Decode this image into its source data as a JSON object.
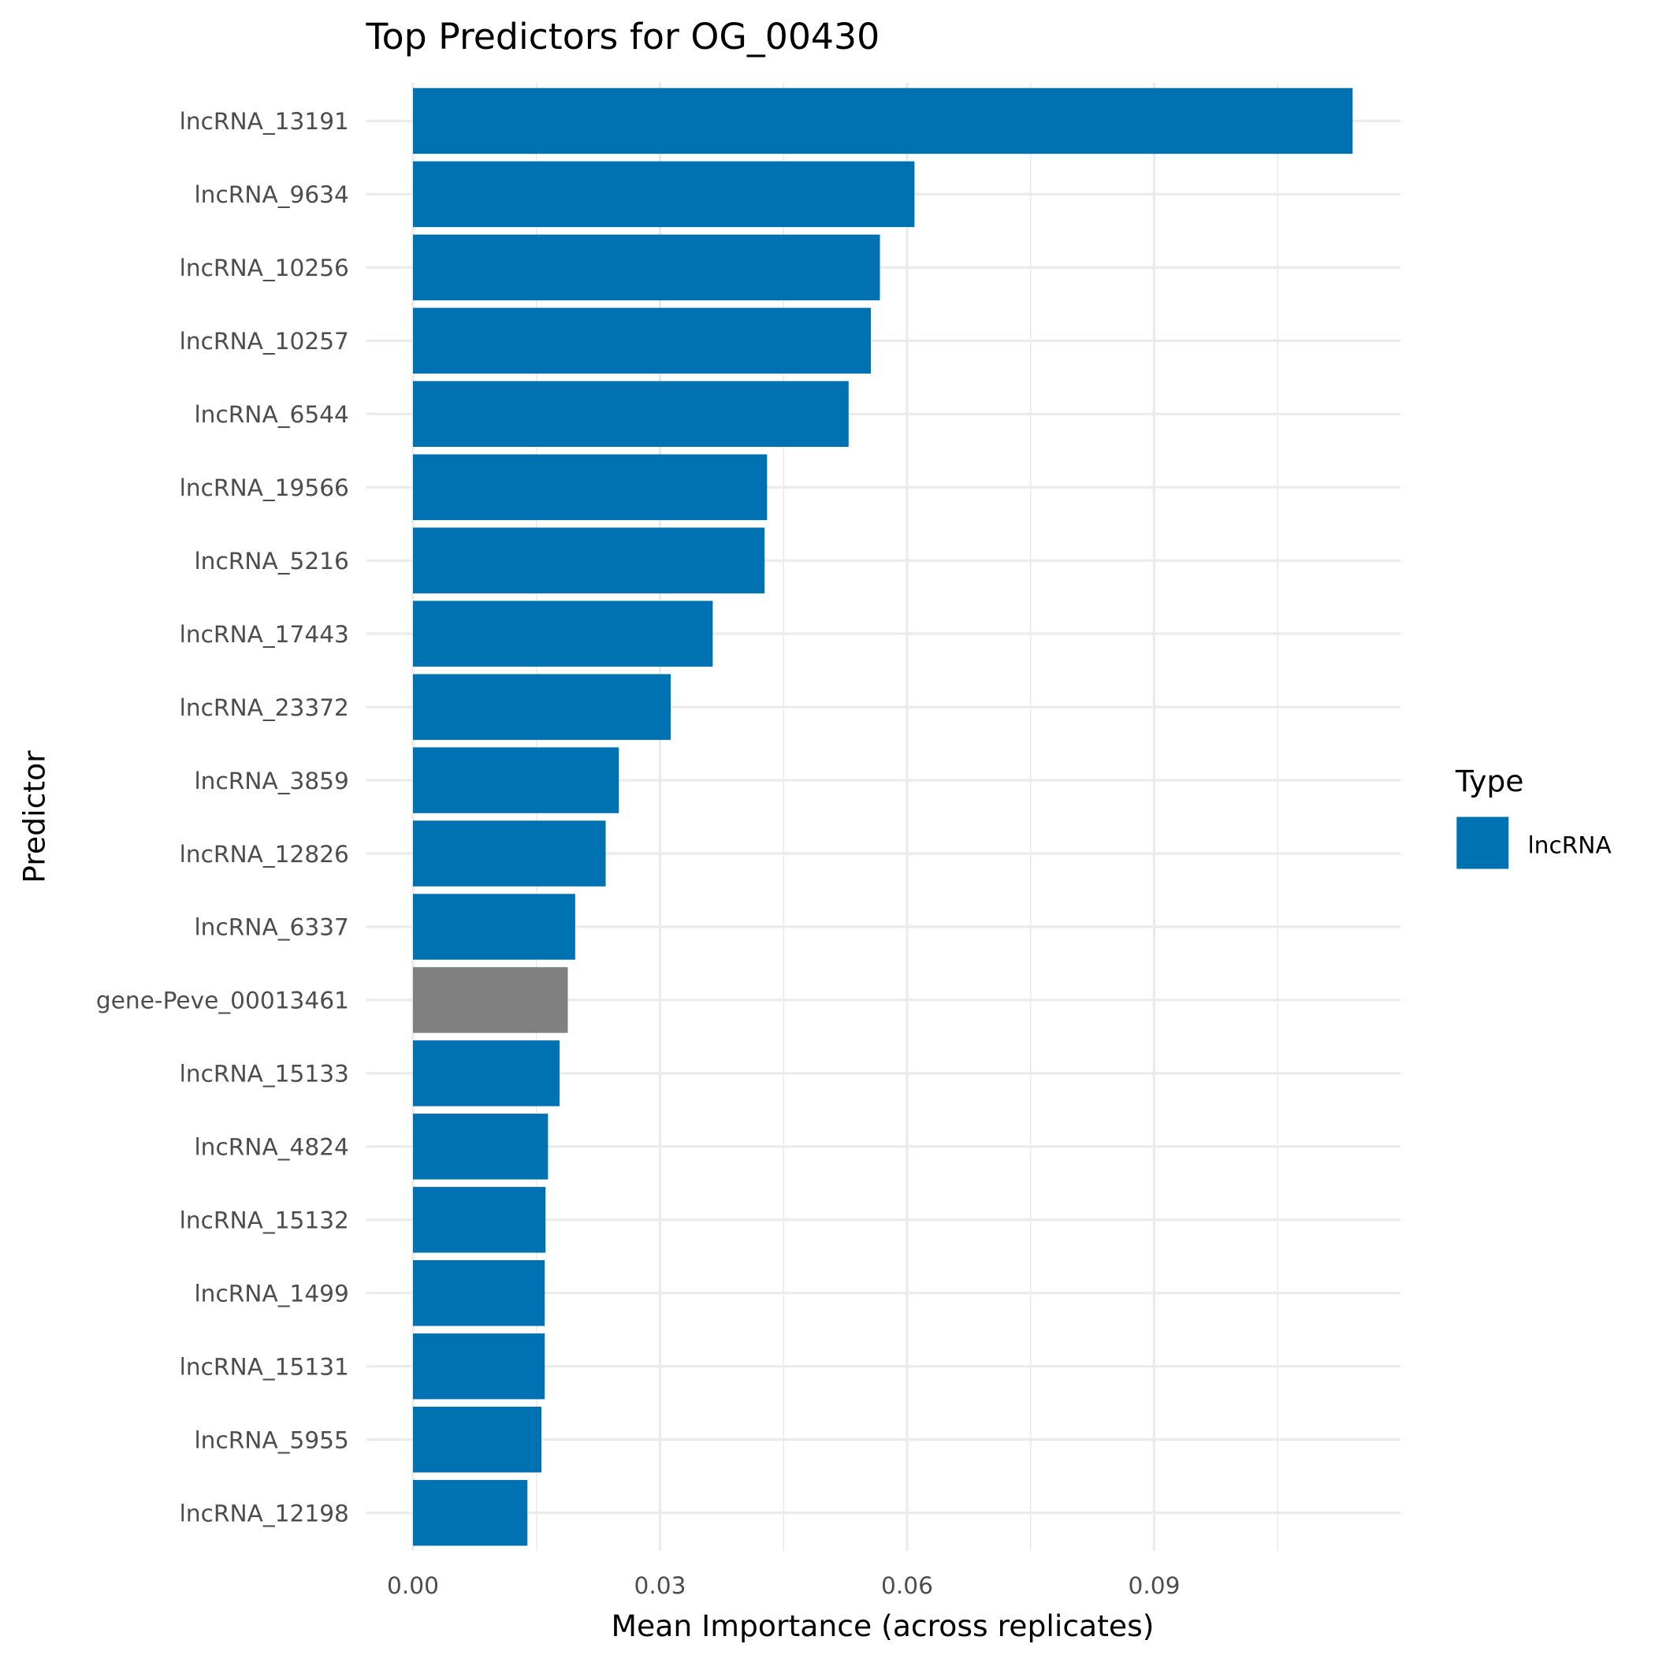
{
  "chart_data": {
    "type": "bar",
    "orientation": "horizontal",
    "title": "Top Predictors for OG_00430",
    "xlabel": "Mean Importance (across replicates)",
    "ylabel": "Predictor",
    "xlim": [
      -0.0057,
      0.1199
    ],
    "xticks": [
      0.0,
      0.03,
      0.06,
      0.09
    ],
    "xtick_labels": [
      "0.00",
      "0.03",
      "0.06",
      "0.09"
    ],
    "grid": true,
    "legend": {
      "title": "Type",
      "placement": "right",
      "entries": [
        {
          "label": "lncRNA",
          "color": "#0072B2"
        }
      ]
    },
    "categories": [
      "lncRNA_13191",
      "lncRNA_9634",
      "lncRNA_10256",
      "lncRNA_10257",
      "lncRNA_6544",
      "lncRNA_19566",
      "lncRNA_5216",
      "lncRNA_17443",
      "lncRNA_23372",
      "lncRNA_3859",
      "lncRNA_12826",
      "lncRNA_6337",
      "gene-Peve_00013461",
      "lncRNA_15133",
      "lncRNA_4824",
      "lncRNA_15132",
      "lncRNA_1499",
      "lncRNA_15131",
      "lncRNA_5955",
      "lncRNA_12198"
    ],
    "values": [
      0.1141,
      0.0609,
      0.0567,
      0.0556,
      0.0529,
      0.043,
      0.0427,
      0.0364,
      0.0313,
      0.025,
      0.0234,
      0.0197,
      0.0188,
      0.0178,
      0.0164,
      0.0161,
      0.016,
      0.016,
      0.0156,
      0.0139
    ],
    "types": [
      "lncRNA",
      "lncRNA",
      "lncRNA",
      "lncRNA",
      "lncRNA",
      "lncRNA",
      "lncRNA",
      "lncRNA",
      "lncRNA",
      "lncRNA",
      "lncRNA",
      "lncRNA",
      "gene",
      "lncRNA",
      "lncRNA",
      "lncRNA",
      "lncRNA",
      "lncRNA",
      "lncRNA",
      "lncRNA"
    ],
    "colors": {
      "lncRNA": "#0072B2",
      "gene": "#808080"
    }
  }
}
